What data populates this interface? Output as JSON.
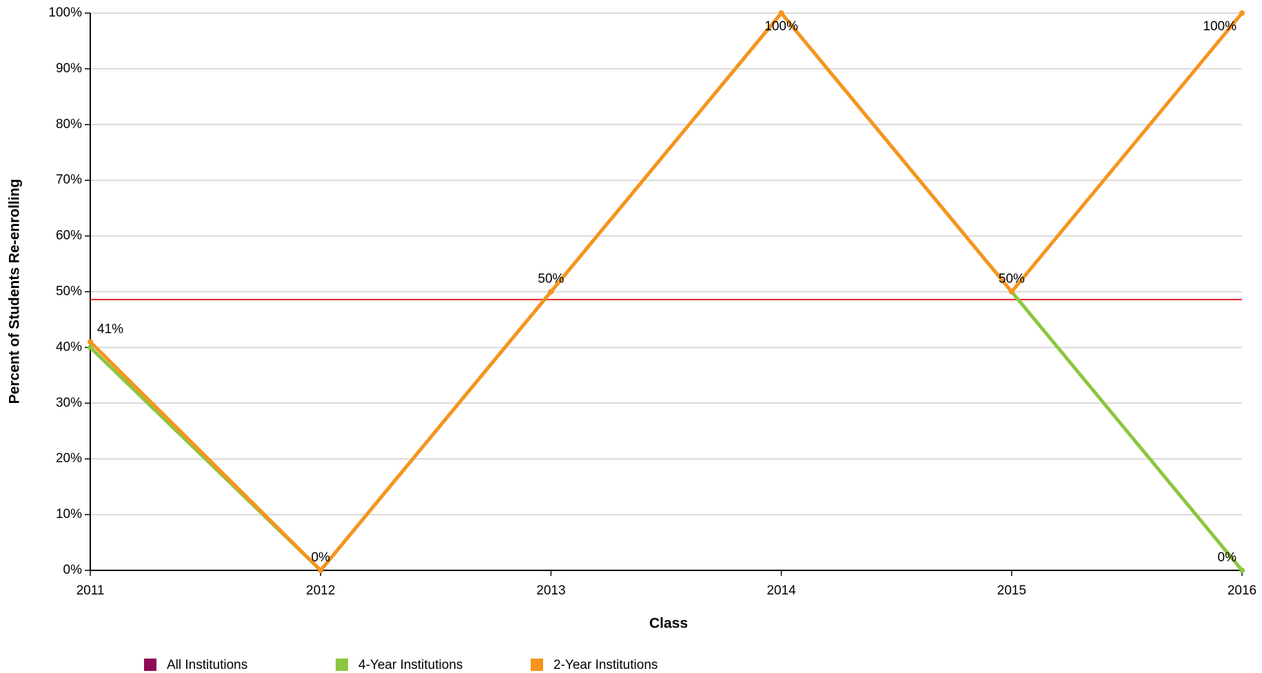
{
  "chart_data": {
    "type": "line",
    "x_label": "Class",
    "y_label": "Percent of Students Re-enrolling",
    "x": [
      2011,
      2012,
      2013,
      2014,
      2015,
      2016
    ],
    "xlim": [
      2011,
      2016
    ],
    "xticks": [
      2011,
      2012,
      2013,
      2014,
      2015,
      2016
    ],
    "ylim": [
      0,
      100
    ],
    "yticks": [
      {
        "value": 0,
        "label": "0%"
      },
      {
        "value": 10,
        "label": "10%"
      },
      {
        "value": 20,
        "label": "20%"
      },
      {
        "value": 30,
        "label": "30%"
      },
      {
        "value": 40,
        "label": "40%"
      },
      {
        "value": 50,
        "label": "50%"
      },
      {
        "value": 60,
        "label": "60%"
      },
      {
        "value": 70,
        "label": "70%"
      },
      {
        "value": 80,
        "label": "80%"
      },
      {
        "value": 90,
        "label": "90%"
      },
      {
        "value": 100,
        "label": "100%"
      }
    ],
    "grid": true,
    "reference_line": {
      "value": 48.6,
      "color": "#e8232a"
    },
    "legend": "bottom-left",
    "series": [
      {
        "name": "All Institutions",
        "color": "#8e0c55",
        "values": [
          null,
          null,
          null,
          null,
          null,
          null
        ]
      },
      {
        "name": "4-Year Institutions",
        "color": "#8cc63f",
        "values": [
          40,
          0,
          50,
          100,
          50,
          0
        ],
        "value_labels": [
          null,
          null,
          null,
          null,
          null,
          "0%"
        ]
      },
      {
        "name": "2-Year Institutions",
        "color": "#f7941d",
        "values": [
          41,
          0,
          50,
          100,
          50,
          100
        ],
        "value_labels": [
          "41%",
          "0%",
          "50%",
          "100%",
          "50%",
          "100%"
        ]
      }
    ]
  }
}
